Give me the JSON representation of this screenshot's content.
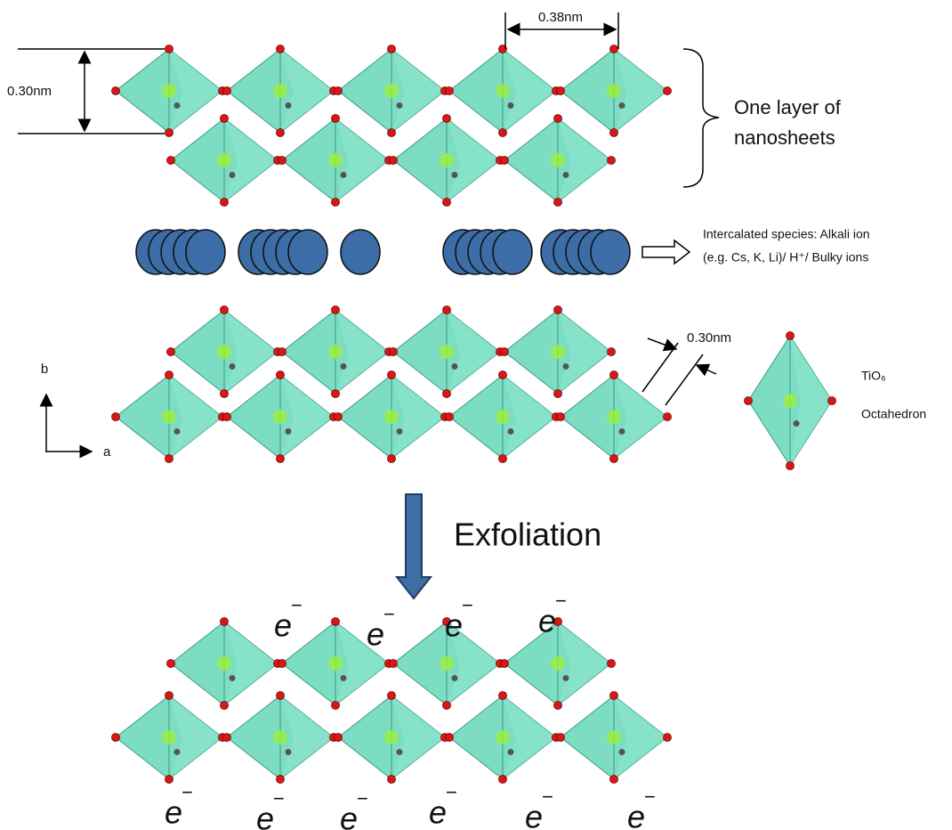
{
  "dimensions": {
    "left_spacing": "0.30nm",
    "top_spacing": "0.38nm",
    "side_thickness": "0.30nm"
  },
  "brace_label": [
    "One layer of",
    "nanosheets"
  ],
  "intercalated_label": [
    "Intercalated species: Alkali ion",
    "(e.g. Cs, K, Li)/ H⁺/ Bulky ions"
  ],
  "octahedron_label": {
    "formula": "TiO₆",
    "name": "Octahedron"
  },
  "axes": {
    "vertical": "b",
    "horizontal": "a"
  },
  "process": "Exfoliation",
  "electrons": {
    "top": [
      {
        "symbol": "e",
        "charge": "−"
      },
      {
        "symbol": "e",
        "charge": "−"
      },
      {
        "symbol": "e",
        "charge": "−"
      },
      {
        "symbol": "e",
        "charge": "−"
      }
    ],
    "bottom": [
      {
        "symbol": "e",
        "charge": "−"
      },
      {
        "symbol": "e",
        "charge": "−"
      },
      {
        "symbol": "e",
        "charge": "−"
      },
      {
        "symbol": "e",
        "charge": "−"
      },
      {
        "symbol": "e",
        "charge": "−"
      },
      {
        "symbol": "e",
        "charge": "−"
      }
    ]
  }
}
